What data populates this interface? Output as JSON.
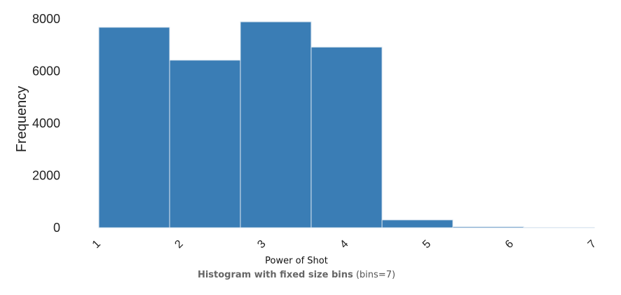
{
  "chart_data": {
    "type": "bar",
    "title": "Histogram with fixed size bins",
    "subtitle": "(bins=7)",
    "xlabel": "Power of Shot",
    "ylabel": "Frequency",
    "x_ticks": [
      "1",
      "2",
      "3",
      "4",
      "5",
      "6",
      "7"
    ],
    "y_ticks": [
      "0",
      "2000",
      "4000",
      "6000",
      "8000"
    ],
    "ylim": [
      0,
      8000
    ],
    "xlim": [
      1,
      7
    ],
    "bins": [
      {
        "start": 1.0,
        "end": 1.857,
        "value": 7680
      },
      {
        "start": 1.857,
        "end": 2.714,
        "value": 6420
      },
      {
        "start": 2.714,
        "end": 3.571,
        "value": 7890
      },
      {
        "start": 3.571,
        "end": 4.429,
        "value": 6920
      },
      {
        "start": 4.429,
        "end": 5.286,
        "value": 300
      },
      {
        "start": 5.286,
        "end": 6.143,
        "value": 40
      },
      {
        "start": 6.143,
        "end": 7.0,
        "value": 10
      }
    ],
    "bar_color": "#3a7db5",
    "grid": false,
    "legend": false
  }
}
